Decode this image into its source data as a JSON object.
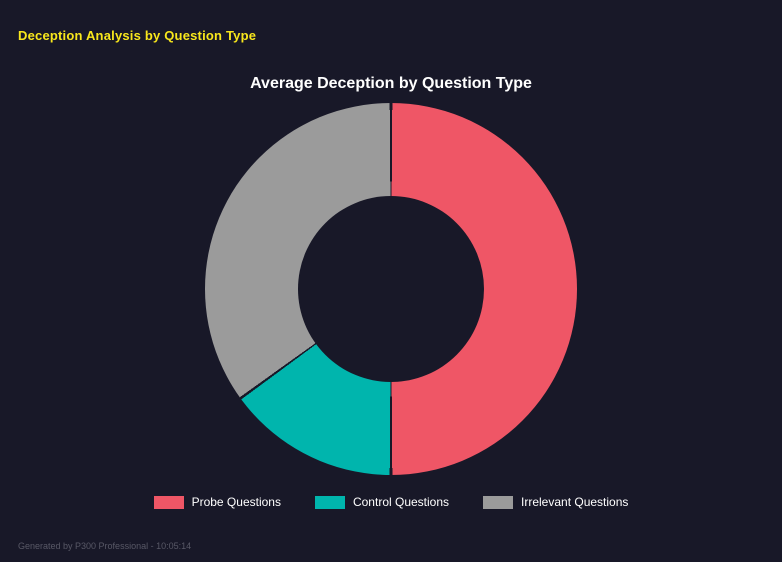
{
  "page": {
    "title": "Deception Analysis by Question Type",
    "footer": "Generated by P300 Professional - 10:05:14"
  },
  "colors": {
    "background": "#181828",
    "header_yellow": "#f8e71c",
    "title_white": "#ffffff",
    "footer_gray": "#585866"
  },
  "chart_data": {
    "type": "pie",
    "subtype": "donut",
    "title": "Average Deception by Question Type",
    "categories": [
      "Probe Questions",
      "Control Questions",
      "Irrelevant Questions"
    ],
    "values": [
      50,
      15,
      35
    ],
    "unit": "% of total (estimated from arc angles, no labels shown)",
    "colors": [
      "#ef5666",
      "#00b5ad",
      "#9b9b9b"
    ],
    "start_angle_deg": 0,
    "direction": "clockwise",
    "inner_radius_pct": 48,
    "legend_position": "bottom",
    "grid": false
  }
}
